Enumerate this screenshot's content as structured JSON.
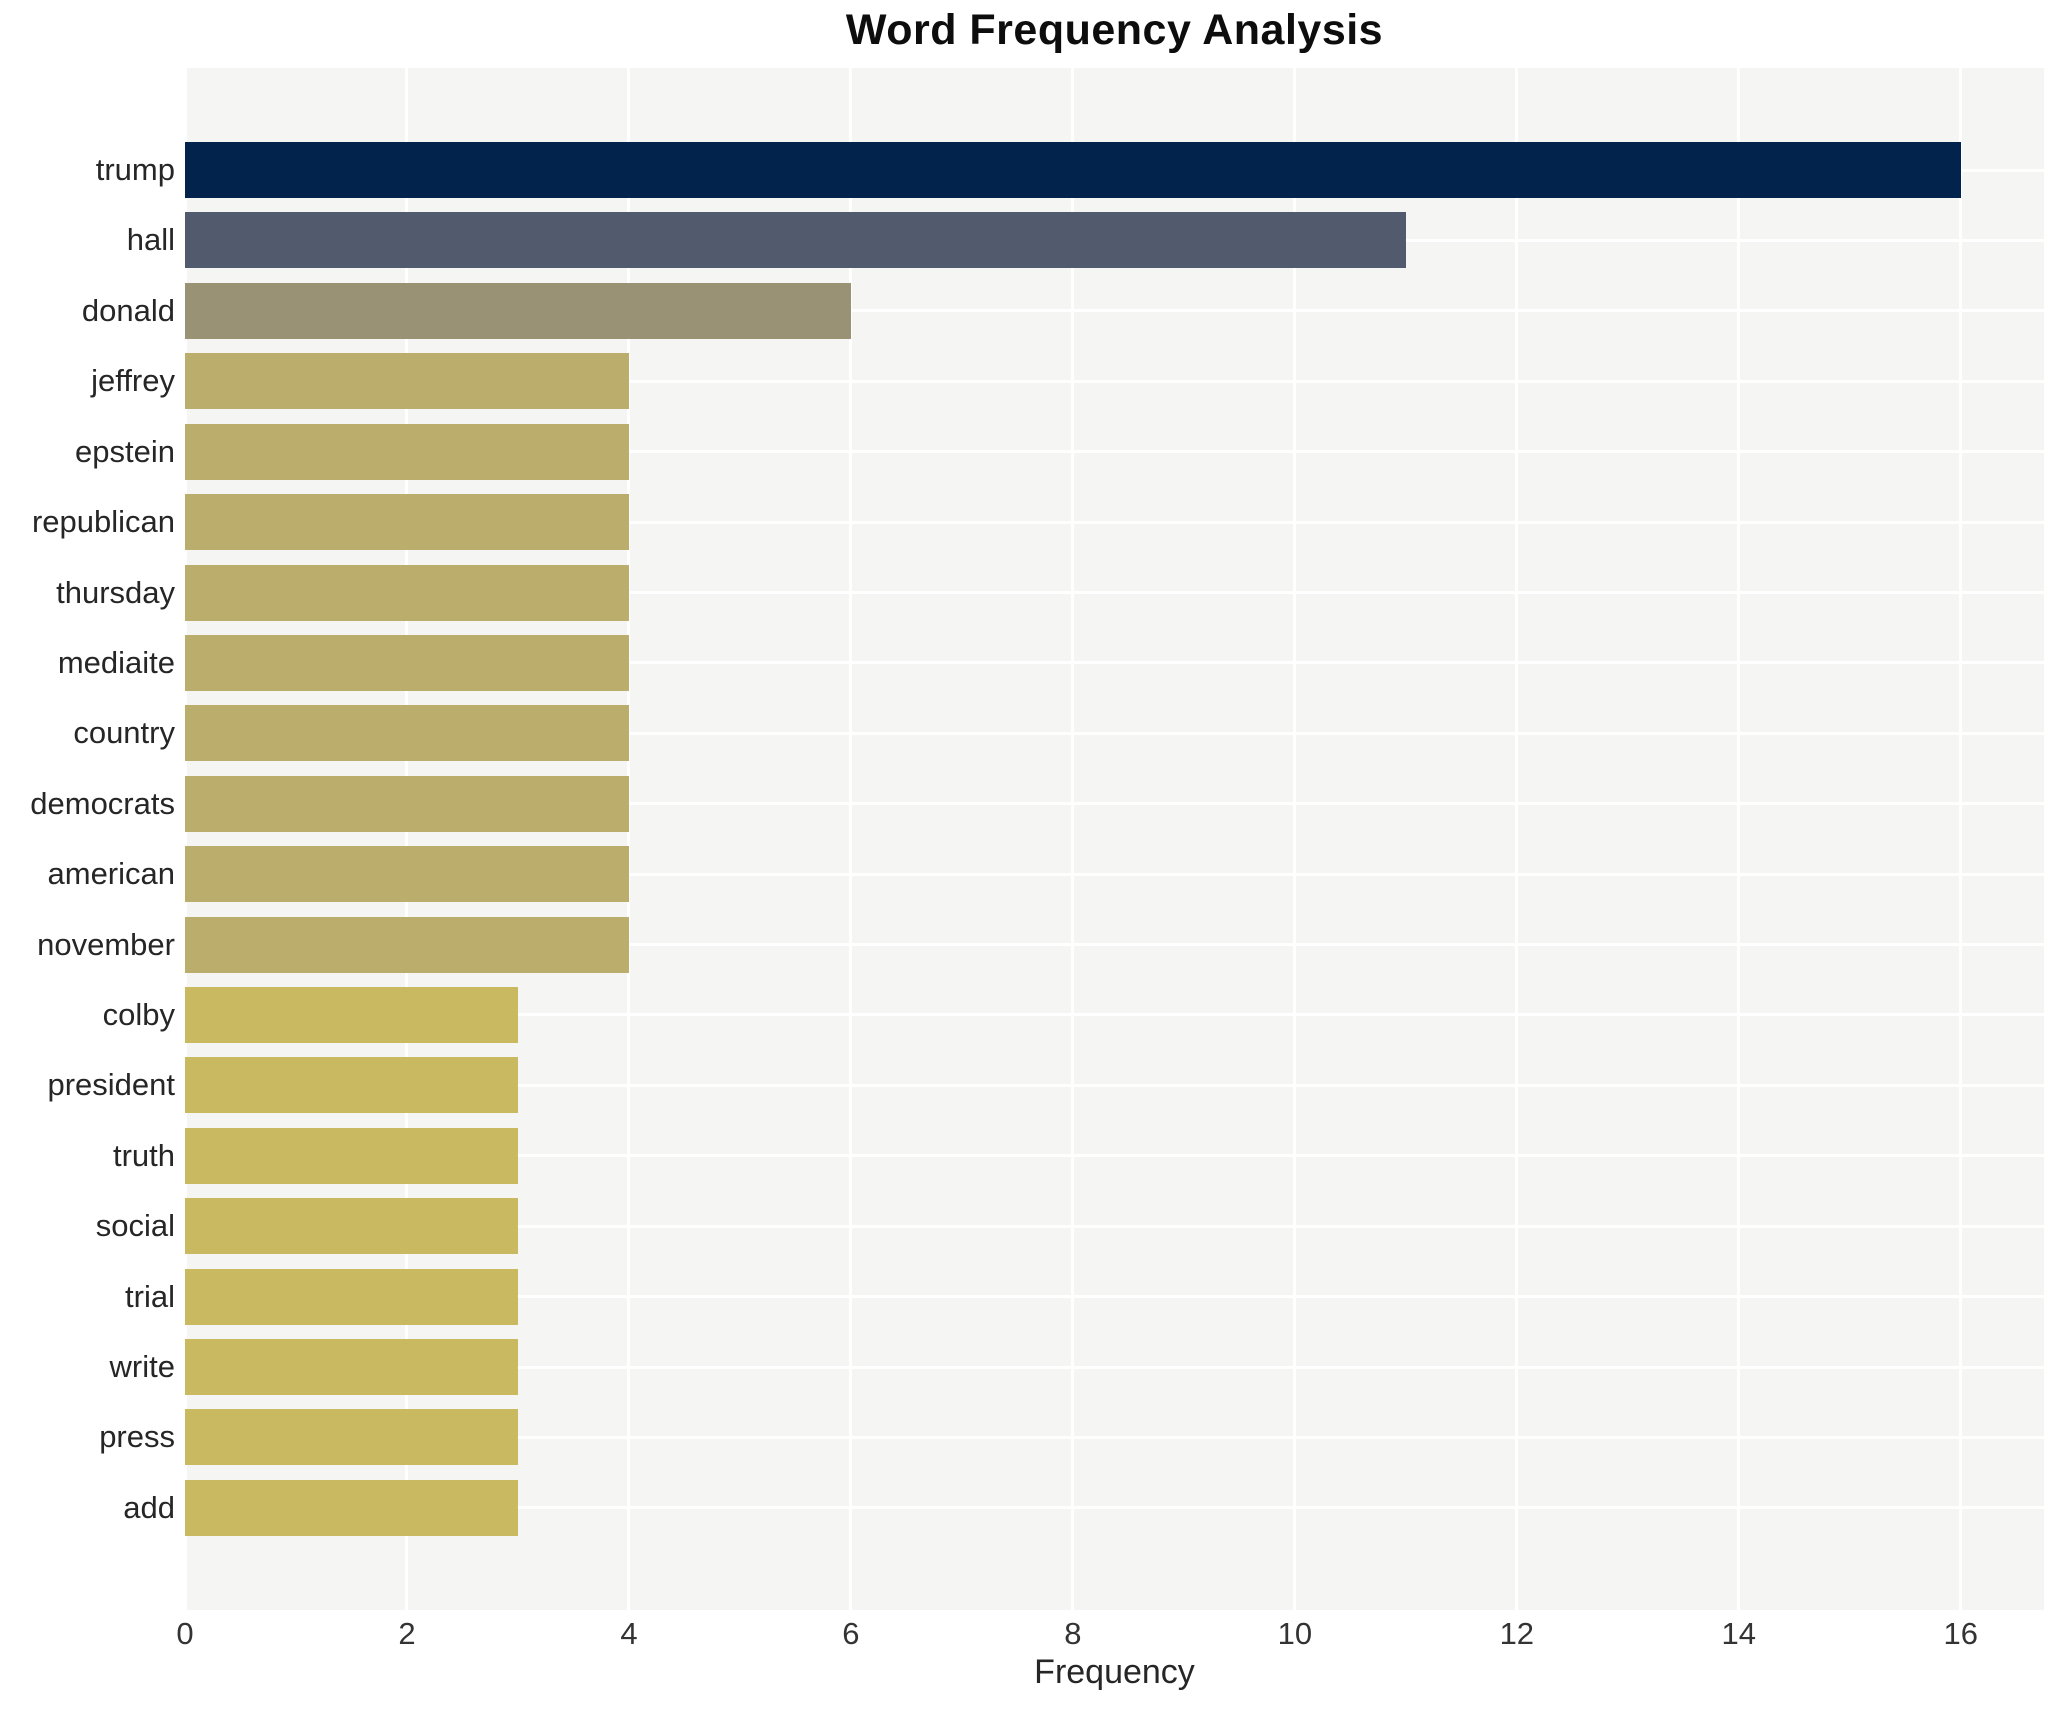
{
  "chart_data": {
    "type": "bar",
    "orientation": "horizontal",
    "title": "Word Frequency Analysis",
    "xlabel": "Frequency",
    "ylabel": "",
    "categories": [
      "trump",
      "hall",
      "donald",
      "jeffrey",
      "epstein",
      "republican",
      "thursday",
      "mediaite",
      "country",
      "democrats",
      "american",
      "november",
      "colby",
      "president",
      "truth",
      "social",
      "trial",
      "write",
      "press",
      "add"
    ],
    "values": [
      16,
      11,
      6,
      4,
      4,
      4,
      4,
      4,
      4,
      4,
      4,
      4,
      3,
      3,
      3,
      3,
      3,
      3,
      3,
      3
    ],
    "bar_colors": [
      "#02234c",
      "#525b6d",
      "#999274",
      "#bbad6c",
      "#bbad6c",
      "#bbad6c",
      "#bbad6c",
      "#bbad6c",
      "#bbad6c",
      "#bbad6c",
      "#bbad6c",
      "#bbad6c",
      "#c9ba62",
      "#c9ba62",
      "#c9ba62",
      "#c9ba62",
      "#c9ba62",
      "#c9ba62",
      "#c9ba62",
      "#c9ba62"
    ],
    "xticks": [
      0,
      2,
      4,
      6,
      8,
      10,
      12,
      14,
      16
    ],
    "xlim": [
      0,
      16.75
    ],
    "grid": true,
    "legend_position": "none",
    "plot_background": "#f5f5f4",
    "grid_color": "#ffffff",
    "text_color": "#262626",
    "title_color": "#0d0d0d"
  }
}
